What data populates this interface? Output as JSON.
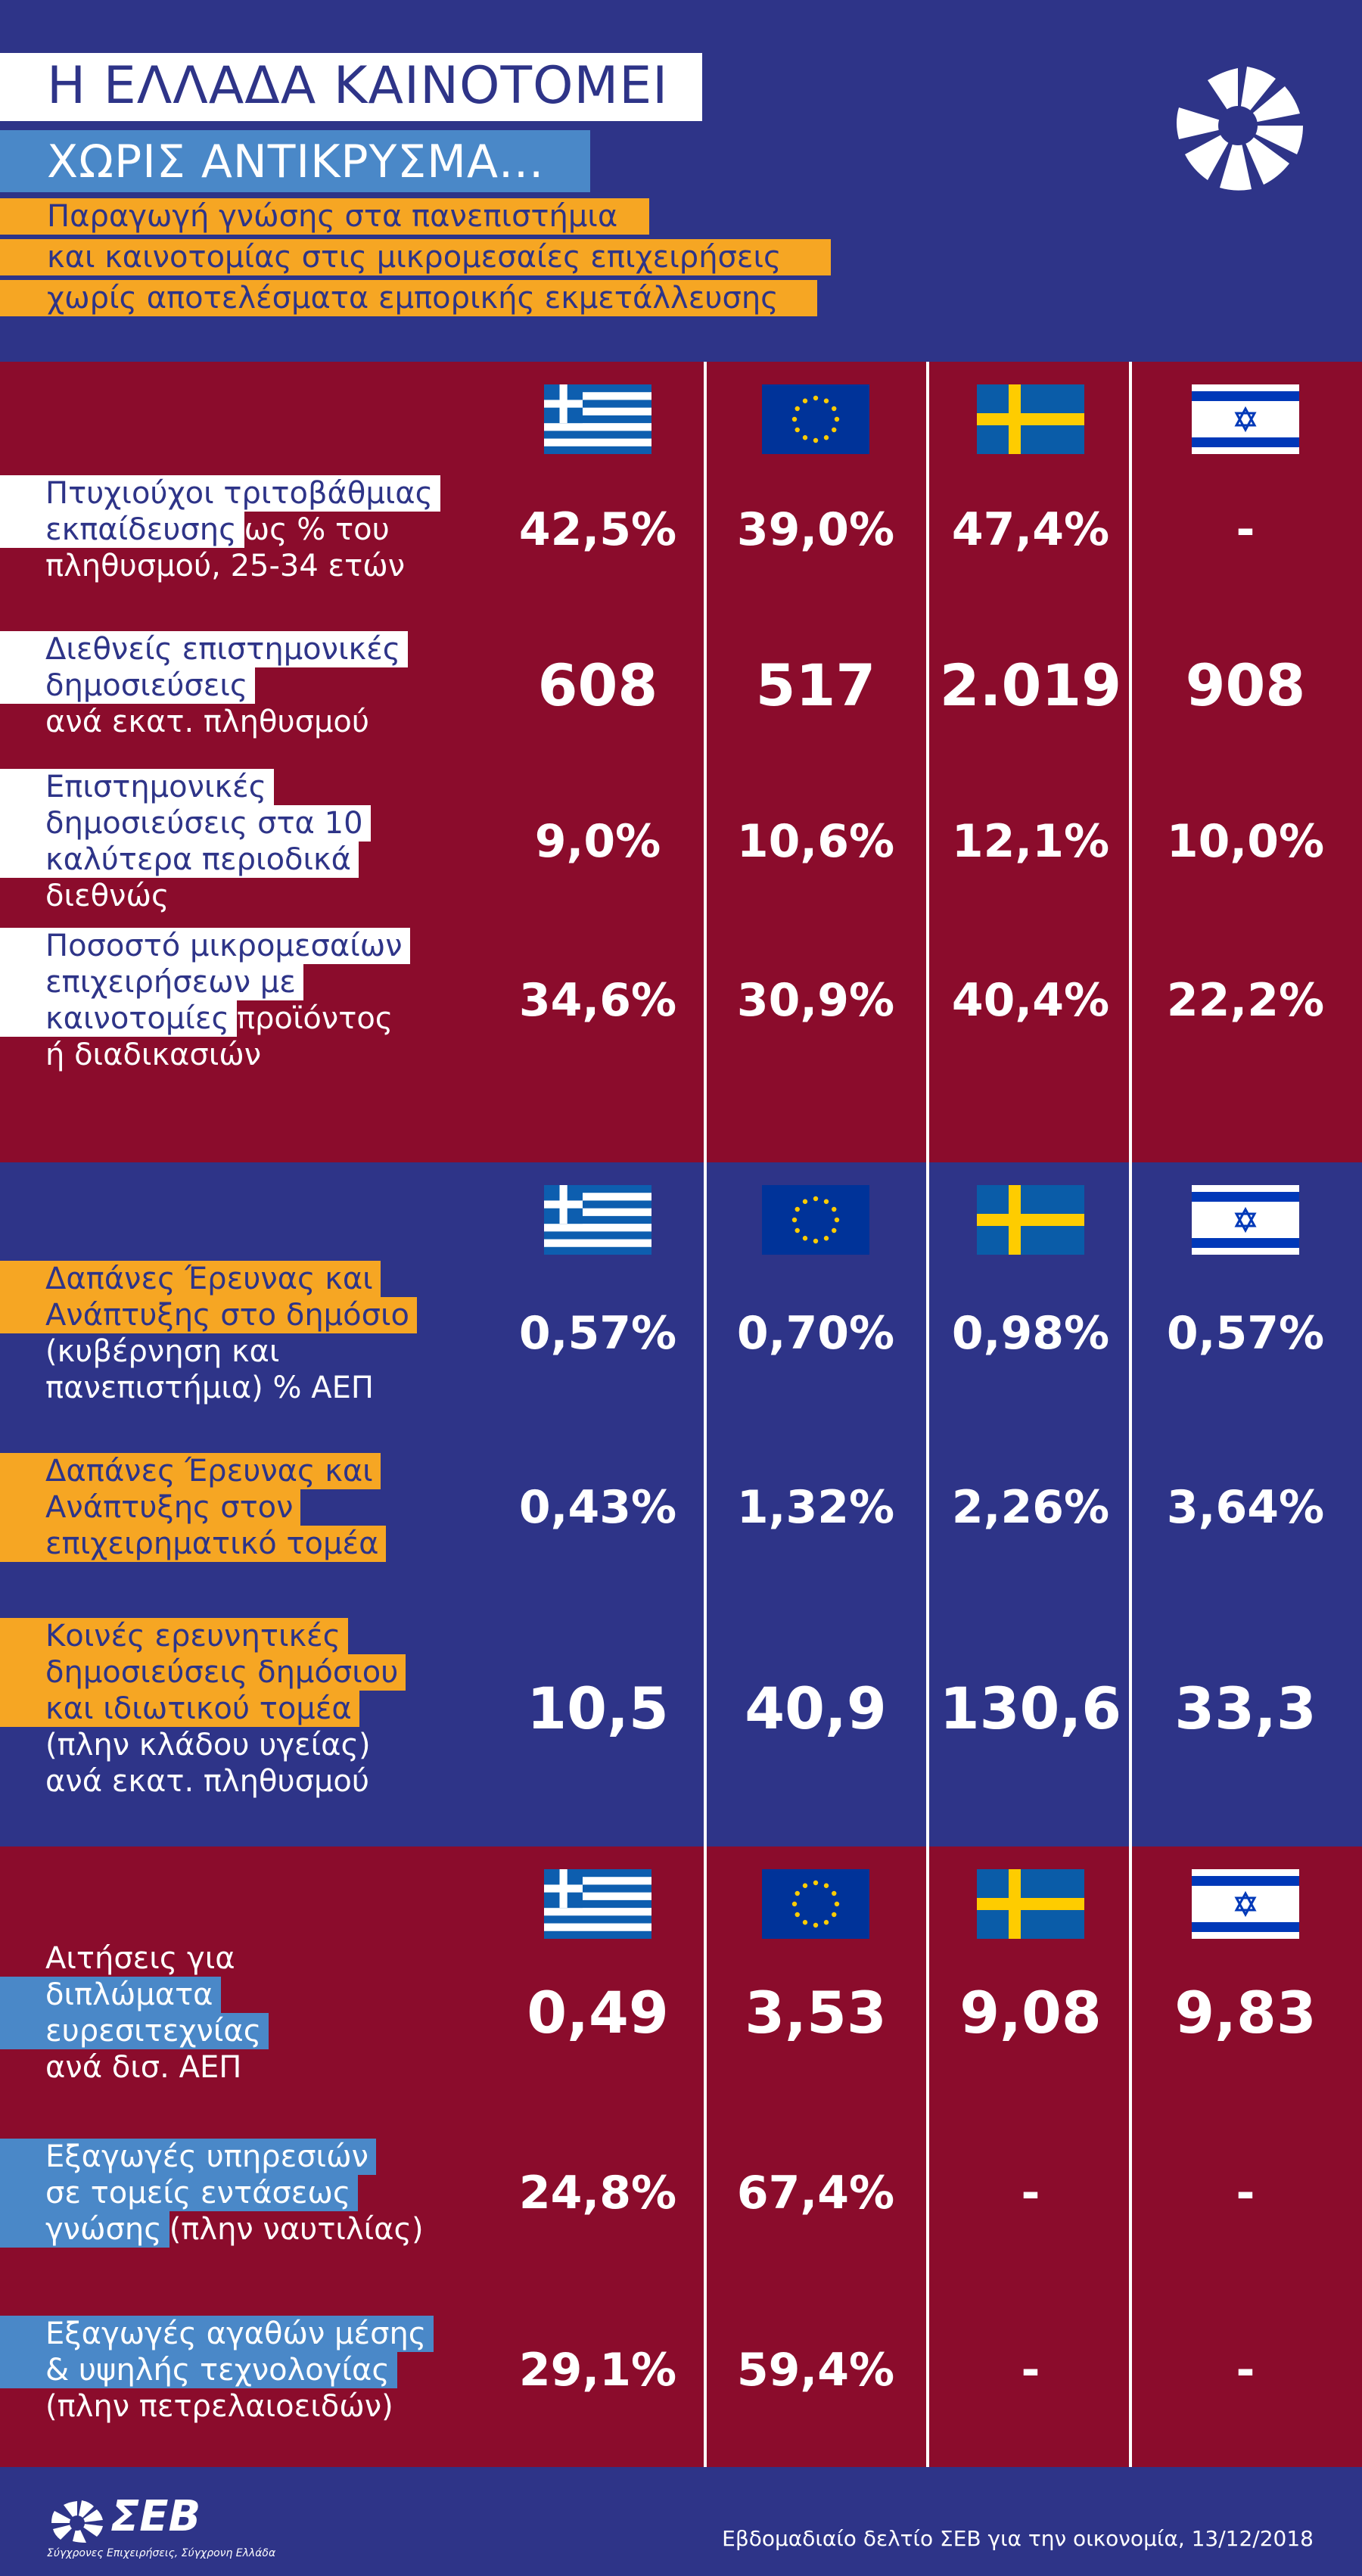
{
  "header": {
    "title_line1": "Η ΕΛΛΑΔΑ ΚΑΙΝΟΤΟΜΕΙ",
    "title_line2": "ΧΩΡΙΣ ΑΝΤΙΚΡΥΣΜΑ...",
    "subtitle_lines": [
      "Παραγωγή γνώσης στα πανεπιστήμια",
      "και καινοτομίας στις μικρομεσαίες επιχειρήσεις",
      "χωρίς αποτελέσματα εμπορικής εκμετάλλευσης"
    ],
    "logo_icon": "seb-sun-icon"
  },
  "colors": {
    "navy": "#2e3488",
    "burgundy": "#8b0c2c",
    "orange": "#f6a623",
    "light_blue": "#4a88c8",
    "white": "#ffffff"
  },
  "chart_data": {
    "type": "table",
    "countries": [
      "greece-flag-icon",
      "eu-flag-icon",
      "sweden-flag-icon",
      "israel-flag-icon"
    ],
    "sections": [
      {
        "rows": [
          {
            "label_lines": [
              [
                "Πτυχιούχοι τριτοβάθμιας",
                ""
              ],
              [
                "εκπαίδευσης",
                " ως % του"
              ],
              [
                "",
                "πληθυσμού, 25-34 ετών"
              ]
            ],
            "values": [
              "42,5%",
              "39,0%",
              "47,4%",
              "-"
            ]
          },
          {
            "label_lines": [
              [
                "Διεθνείς επιστημονικές",
                ""
              ],
              [
                "δημοσιεύσεις",
                ""
              ],
              [
                "",
                "ανά εκατ. πληθυσμού"
              ]
            ],
            "values": [
              "608",
              "517",
              "2.019",
              "908"
            ]
          },
          {
            "label_lines": [
              [
                "Επιστημονικές",
                ""
              ],
              [
                "δημοσιεύσεις στα 10",
                ""
              ],
              [
                "καλύτερα περιοδικά",
                ""
              ],
              [
                "",
                "διεθνώς"
              ]
            ],
            "values": [
              "9,0%",
              "10,6%",
              "12,1%",
              "10,0%"
            ]
          },
          {
            "label_lines": [
              [
                "Ποσοστό μικρομεσαίων",
                ""
              ],
              [
                "επιχειρήσεων με",
                ""
              ],
              [
                "καινοτομίες",
                " προϊόντος"
              ],
              [
                "",
                "ή διαδικασιών"
              ]
            ],
            "values": [
              "34,6%",
              "30,9%",
              "40,4%",
              "22,2%"
            ]
          }
        ]
      },
      {
        "rows": [
          {
            "label_lines": [
              [
                "Δαπάνες Έρευνας και",
                ""
              ],
              [
                "Ανάπτυξης στο δημόσιο",
                ""
              ],
              [
                "",
                "(κυβέρνηση και"
              ],
              [
                "",
                "πανεπιστήμια) % ΑΕΠ"
              ]
            ],
            "values": [
              "0,57%",
              "0,70%",
              "0,98%",
              "0,57%"
            ]
          },
          {
            "label_lines": [
              [
                "Δαπάνες Έρευνας και",
                ""
              ],
              [
                "Ανάπτυξης στον",
                ""
              ],
              [
                "επιχειρηματικό τομέα",
                ""
              ]
            ],
            "values": [
              "0,43%",
              "1,32%",
              "2,26%",
              "3,64%"
            ]
          },
          {
            "label_lines": [
              [
                "Κοινές ερευνητικές",
                ""
              ],
              [
                "δημοσιεύσεις δημόσιου",
                ""
              ],
              [
                "και ιδιωτικού τομέα",
                ""
              ],
              [
                "",
                "(πλην κλάδου υγείας)"
              ],
              [
                "",
                "ανά εκατ. πληθυσμού"
              ]
            ],
            "values": [
              "10,5",
              "40,9",
              "130,6",
              "33,3"
            ]
          }
        ]
      },
      {
        "rows": [
          {
            "label_lines": [
              [
                "",
                "Αιτήσεις για"
              ],
              [
                "διπλώματα",
                ""
              ],
              [
                "ευρεσιτεχνίας",
                ""
              ],
              [
                "",
                "ανά δισ. ΑΕΠ"
              ]
            ],
            "values": [
              "0,49",
              "3,53",
              "9,08",
              "9,83"
            ]
          },
          {
            "label_lines": [
              [
                "Εξαγωγές υπηρεσιών",
                ""
              ],
              [
                "σε τομείς εντάσεως",
                ""
              ],
              [
                "γνώσης",
                " (πλην ναυτιλίας)"
              ]
            ],
            "values": [
              "24,8%",
              "67,4%",
              "-",
              "-"
            ]
          },
          {
            "label_lines": [
              [
                "Εξαγωγές αγαθών μέσης",
                ""
              ],
              [
                "& υψηλής τεχνολογίας",
                ""
              ],
              [
                "",
                "(πλην πετρελαιοειδών)"
              ]
            ],
            "values": [
              "29,1%",
              "59,4%",
              "-",
              "-"
            ]
          }
        ]
      }
    ]
  },
  "footer": {
    "brand": "ΣΕΒ",
    "tagline": "Σύγχρονες Επιχειρήσεις, Σύγχρονη Ελλάδα",
    "source": "Εβδομαδιαίο δελτίο ΣΕΒ για την οικονομία, 13/12/2018"
  }
}
